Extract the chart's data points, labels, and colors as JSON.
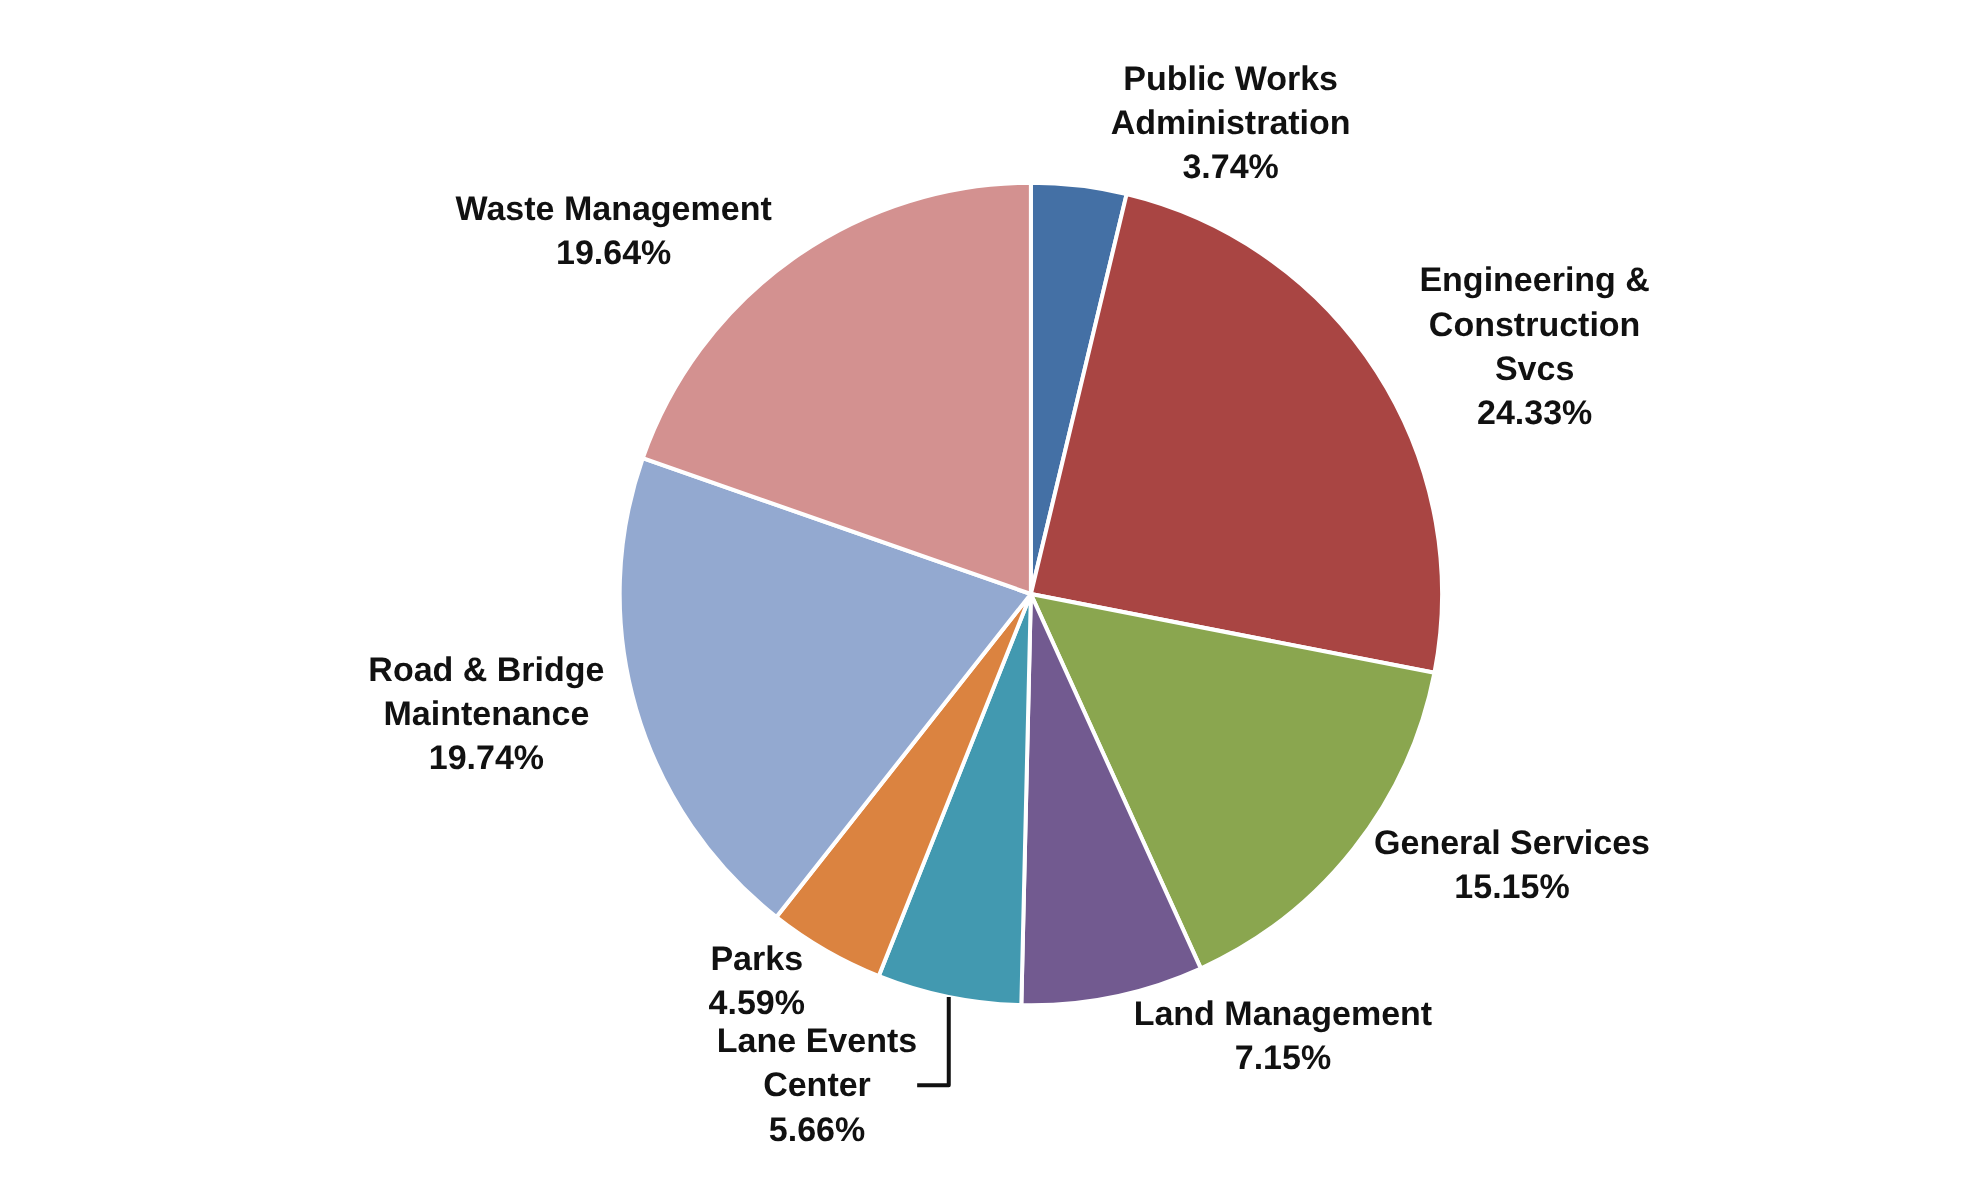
{
  "chart_data": {
    "type": "pie",
    "categories": [
      "Public Works Administration",
      "Engineering & Construction Svcs",
      "General Services",
      "Land Management",
      "Lane Events Center",
      "Parks",
      "Road & Bridge Maintenance",
      "Waste Management"
    ],
    "values": [
      3.74,
      24.33,
      15.15,
      7.15,
      5.66,
      4.59,
      19.74,
      19.64
    ],
    "value_labels": [
      "3.74%",
      "24.33%",
      "15.15%",
      "7.15%",
      "5.66%",
      "4.59%",
      "19.74%",
      "19.64%"
    ],
    "colors": [
      "#4470a5",
      "#a94543",
      "#8aa64f",
      "#725a90",
      "#4299b0",
      "#db8340",
      "#93a9d0",
      "#d39190"
    ]
  }
}
